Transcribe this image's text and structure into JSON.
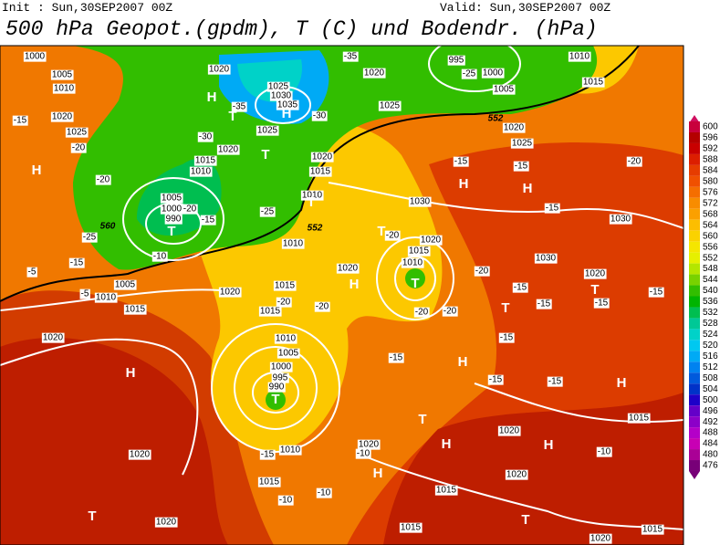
{
  "header": {
    "init": "Init : Sun,30SEP2007 00Z",
    "valid": "Valid: Sun,30SEP2007 00Z",
    "title": "500 hPa Geopot.(gpdm), T (C) und Bodendr. (hPa)"
  },
  "colorbar": {
    "levels": [
      600,
      596,
      592,
      588,
      584,
      580,
      576,
      572,
      568,
      564,
      560,
      556,
      552,
      548,
      544,
      540,
      536,
      532,
      528,
      524,
      520,
      516,
      512,
      508,
      504,
      500,
      496,
      492,
      488,
      484,
      480,
      476
    ],
    "colors": [
      "#c8003c",
      "#b40000",
      "#c80000",
      "#dc1e00",
      "#e63c00",
      "#f05000",
      "#f56e00",
      "#f88c00",
      "#fba000",
      "#fcbe00",
      "#fad200",
      "#f5e600",
      "#e6f000",
      "#b4e600",
      "#78d200",
      "#32be00",
      "#00b400",
      "#00be50",
      "#00c896",
      "#00d2c8",
      "#00c8f0",
      "#00aaf5",
      "#0082f0",
      "#005adc",
      "#0032c8",
      "#1e00c8",
      "#6400c8",
      "#8c00c8",
      "#b400c8",
      "#c800b4",
      "#aa0096",
      "#780078"
    ]
  },
  "isobar_labels": [
    "1000",
    "1005",
    "1010",
    "1020",
    "1025",
    "1020",
    "1025",
    "1030",
    "1035",
    "1025",
    "1020",
    "1025",
    "995",
    "1000",
    "1005",
    "1010",
    "1015",
    "1020",
    "1025",
    "1020",
    "1015",
    "1010",
    "1005",
    "1000",
    "990",
    "1020",
    "1015",
    "1010",
    "1010",
    "1030",
    "1020",
    "1015",
    "1010",
    "1020",
    "1015",
    "1005",
    "1010",
    "1015",
    "1020",
    "1015",
    "1010",
    "1005",
    "1000",
    "995",
    "990",
    "1020",
    "1020",
    "1010",
    "1015",
    "1020",
    "1015",
    "1020",
    "1020",
    "1015",
    "1030",
    "1030",
    "1020",
    "1015",
    "1020",
    "1020",
    "1015"
  ],
  "temperature_labels": [
    "-35",
    "-25",
    "-35",
    "-30",
    "-30",
    "-20",
    "-15",
    "-20",
    "-20",
    "-15",
    "-25",
    "-25",
    "-10",
    "-15",
    "-5",
    "-5",
    "-20",
    "-20",
    "-20",
    "-20",
    "-20",
    "-20",
    "-15",
    "-15",
    "-20",
    "-15",
    "-15",
    "-15",
    "-15",
    "-15",
    "-15",
    "-15",
    "-15",
    "-15",
    "-15",
    "-10",
    "-10",
    "-10",
    "-10"
  ],
  "geopotential_labels": [
    "552",
    "552",
    "560"
  ],
  "pressure_centers": [
    "H",
    "T",
    "H",
    "T",
    "H",
    "T",
    "H",
    "H",
    "T",
    "H",
    "T",
    "T",
    "T",
    "H",
    "T",
    "H",
    "H",
    "T",
    "H",
    "H",
    "H",
    "T",
    "T",
    "T"
  ]
}
